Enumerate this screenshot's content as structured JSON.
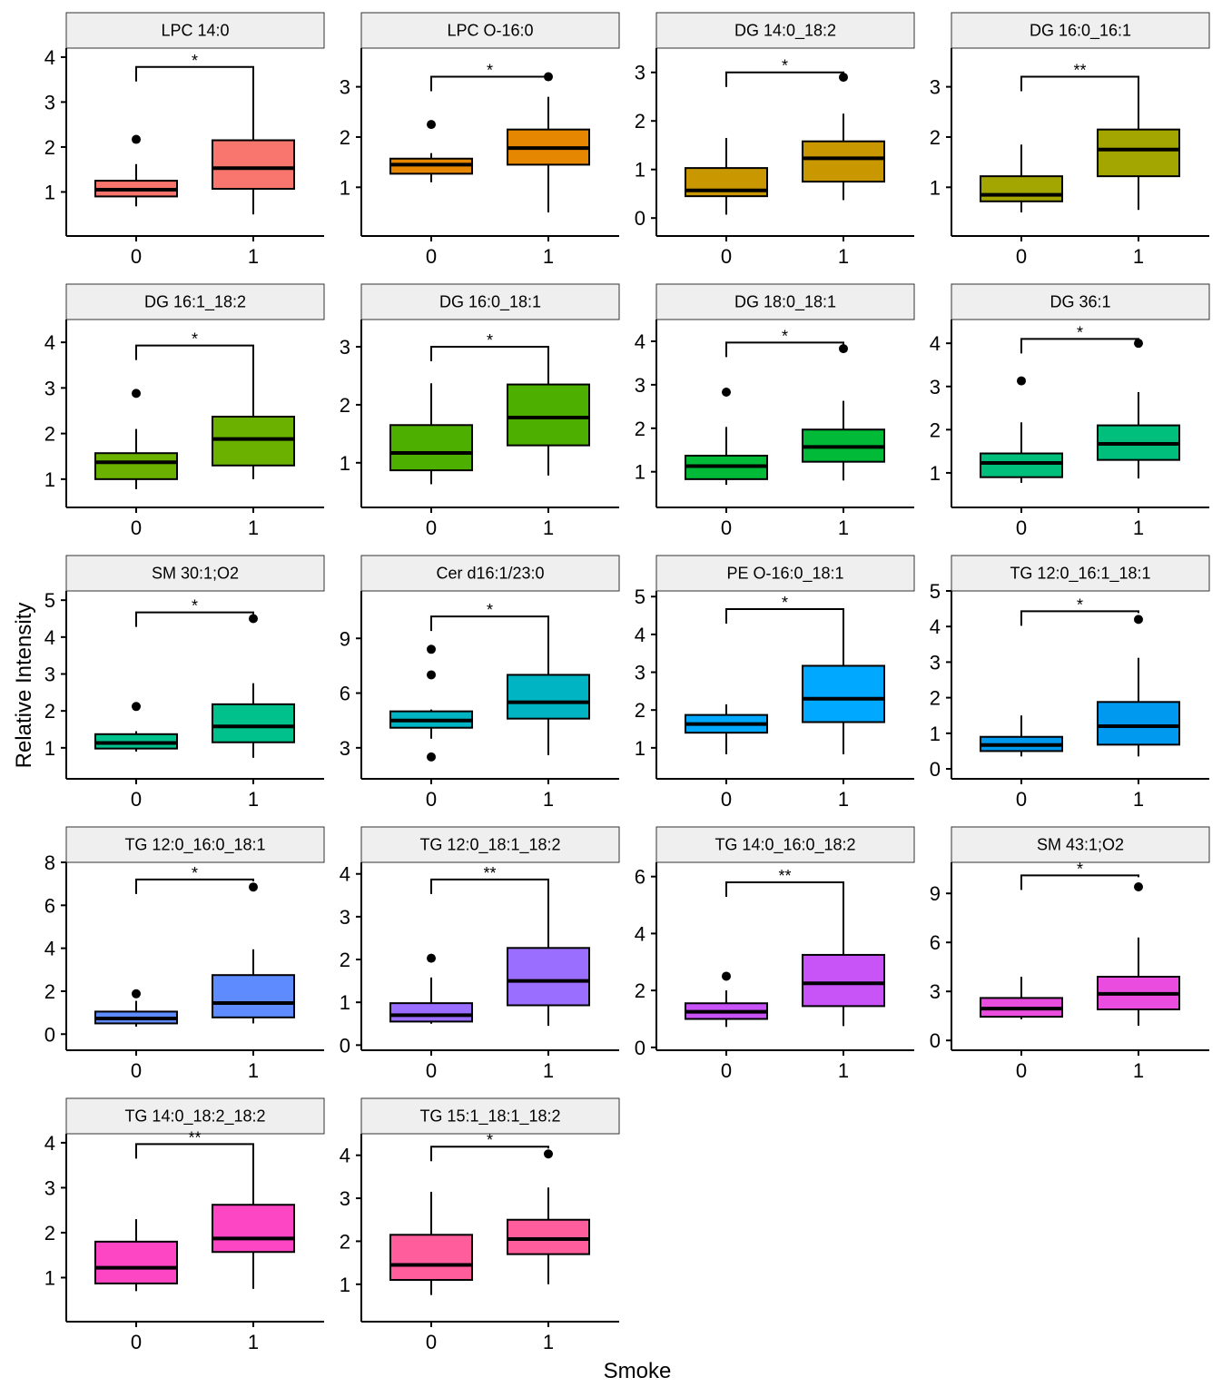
{
  "figure": {
    "ylabel": "Relative Intensity",
    "xlabel": "Smoke"
  },
  "colors": {
    "strip_fill": "#efefef",
    "axis": "#000000",
    "whisker": "#000000",
    "outlier": "#000000"
  },
  "chart_data": [
    {
      "type": "box",
      "title": "LPC 14:0",
      "color": "#f8766d",
      "categories": [
        "0",
        "1"
      ],
      "yticks": [
        1,
        2,
        3,
        4
      ],
      "ylim": [
        0.02,
        4.2
      ],
      "significance": "*",
      "bracket_y": 3.78,
      "groups": [
        {
          "min": 0.68,
          "q1": 0.9,
          "median": 1.05,
          "q3": 1.25,
          "max": 1.62,
          "outliers": [
            2.17
          ]
        },
        {
          "min": 0.5,
          "q1": 1.07,
          "median": 1.53,
          "q3": 2.15,
          "max": 3.78,
          "outliers": []
        }
      ]
    },
    {
      "type": "box",
      "title": "LPC O-16:0",
      "color": "#e58700",
      "categories": [
        "0",
        "1"
      ],
      "yticks": [
        1,
        2,
        3
      ],
      "ylim": [
        0.03,
        3.77
      ],
      "significance": "*",
      "bracket_y": 3.2,
      "groups": [
        {
          "min": 1.1,
          "q1": 1.27,
          "median": 1.45,
          "q3": 1.57,
          "max": 1.68,
          "outliers": [
            2.25
          ]
        },
        {
          "min": 0.5,
          "q1": 1.45,
          "median": 1.78,
          "q3": 2.15,
          "max": 2.8,
          "outliers": [
            3.2
          ]
        }
      ]
    },
    {
      "type": "box",
      "title": "DG 14:0_18:2",
      "color": "#c99800",
      "categories": [
        "0",
        "1"
      ],
      "yticks": [
        0,
        1,
        2,
        3
      ],
      "ylim": [
        -0.37,
        3.5
      ],
      "significance": "*",
      "bracket_y": 3.0,
      "groups": [
        {
          "min": 0.07,
          "q1": 0.45,
          "median": 0.57,
          "q3": 1.03,
          "max": 1.65,
          "outliers": []
        },
        {
          "min": 0.37,
          "q1": 0.75,
          "median": 1.23,
          "q3": 1.58,
          "max": 2.15,
          "outliers": [
            2.9
          ]
        }
      ]
    },
    {
      "type": "box",
      "title": "DG 16:0_16:1",
      "color": "#a3a500",
      "categories": [
        "0",
        "1"
      ],
      "yticks": [
        1,
        2,
        3
      ],
      "ylim": [
        0.03,
        3.77
      ],
      "significance": "**",
      "bracket_y": 3.2,
      "groups": [
        {
          "min": 0.5,
          "q1": 0.72,
          "median": 0.85,
          "q3": 1.22,
          "max": 1.85,
          "outliers": []
        },
        {
          "min": 0.55,
          "q1": 1.22,
          "median": 1.75,
          "q3": 2.15,
          "max": 3.2,
          "outliers": []
        }
      ]
    },
    {
      "type": "box",
      "title": "DG 16:1_18:2",
      "color": "#6bb100",
      "categories": [
        "0",
        "1"
      ],
      "yticks": [
        1,
        2,
        3,
        4
      ],
      "ylim": [
        0.38,
        4.5
      ],
      "significance": "*",
      "bracket_y": 3.93,
      "groups": [
        {
          "min": 0.78,
          "q1": 1.0,
          "median": 1.37,
          "q3": 1.57,
          "max": 2.1,
          "outliers": [
            2.88
          ]
        },
        {
          "min": 1.0,
          "q1": 1.3,
          "median": 1.88,
          "q3": 2.37,
          "max": 3.93,
          "outliers": []
        }
      ]
    },
    {
      "type": "box",
      "title": "DG 16:0_18:1",
      "color": "#4daf00",
      "categories": [
        "0",
        "1"
      ],
      "yticks": [
        1,
        2,
        3
      ],
      "ylim": [
        0.23,
        3.47
      ],
      "significance": "*",
      "bracket_y": 3.0,
      "groups": [
        {
          "min": 0.63,
          "q1": 0.87,
          "median": 1.17,
          "q3": 1.65,
          "max": 2.37,
          "outliers": []
        },
        {
          "min": 0.78,
          "q1": 1.3,
          "median": 1.78,
          "q3": 2.35,
          "max": 3.0,
          "outliers": []
        }
      ]
    },
    {
      "type": "box",
      "title": "DG 18:0_18:1",
      "color": "#00ba38",
      "categories": [
        "0",
        "1"
      ],
      "yticks": [
        1,
        2,
        3,
        4
      ],
      "ylim": [
        0.18,
        4.5
      ],
      "significance": "*",
      "bracket_y": 3.97,
      "groups": [
        {
          "min": 0.7,
          "q1": 0.83,
          "median": 1.13,
          "q3": 1.37,
          "max": 2.03,
          "outliers": [
            2.83
          ]
        },
        {
          "min": 0.8,
          "q1": 1.23,
          "median": 1.57,
          "q3": 1.97,
          "max": 2.63,
          "outliers": [
            3.83
          ]
        }
      ]
    },
    {
      "type": "box",
      "title": "DG 36:1",
      "color": "#00bf7d",
      "categories": [
        "0",
        "1"
      ],
      "yticks": [
        1,
        2,
        3,
        4
      ],
      "ylim": [
        0.2,
        4.55
      ],
      "significance": "*",
      "bracket_y": 4.1,
      "groups": [
        {
          "min": 0.77,
          "q1": 0.9,
          "median": 1.23,
          "q3": 1.45,
          "max": 2.17,
          "outliers": [
            3.13
          ]
        },
        {
          "min": 0.87,
          "q1": 1.3,
          "median": 1.67,
          "q3": 2.1,
          "max": 2.87,
          "outliers": [
            4.0
          ]
        }
      ]
    },
    {
      "type": "box",
      "title": "SM 30:1;O2",
      "color": "#00c08b",
      "categories": [
        "0",
        "1"
      ],
      "yticks": [
        1,
        2,
        3,
        4,
        5
      ],
      "ylim": [
        0.16,
        5.25
      ],
      "significance": "*",
      "bracket_y": 4.67,
      "groups": [
        {
          "min": 0.9,
          "q1": 0.98,
          "median": 1.13,
          "q3": 1.37,
          "max": 1.45,
          "outliers": [
            2.12
          ]
        },
        {
          "min": 0.73,
          "q1": 1.15,
          "median": 1.58,
          "q3": 2.18,
          "max": 2.75,
          "outliers": [
            4.5
          ]
        }
      ]
    },
    {
      "type": "box",
      "title": "Cer d16:1/23:0",
      "color": "#00b4c4",
      "categories": [
        "0",
        "1"
      ],
      "yticks": [
        3,
        6,
        9
      ],
      "ylim": [
        1.3,
        11.6
      ],
      "significance": "*",
      "bracket_y": 10.2,
      "groups": [
        {
          "min": 3.5,
          "q1": 4.1,
          "median": 4.5,
          "q3": 5.0,
          "max": 5.1,
          "outliers": [
            2.5,
            7.0,
            8.4
          ]
        },
        {
          "min": 2.6,
          "q1": 4.6,
          "median": 5.5,
          "q3": 7.0,
          "max": 10.2,
          "outliers": []
        }
      ]
    },
    {
      "type": "box",
      "title": "PE O-16:0_18:1",
      "color": "#00a9ff",
      "categories": [
        "0",
        "1"
      ],
      "yticks": [
        1,
        2,
        3,
        4,
        5
      ],
      "ylim": [
        0.18,
        5.15
      ],
      "significance": "*",
      "bracket_y": 4.67,
      "groups": [
        {
          "min": 0.83,
          "q1": 1.4,
          "median": 1.63,
          "q3": 1.87,
          "max": 2.15,
          "outliers": []
        },
        {
          "min": 0.83,
          "q1": 1.68,
          "median": 2.3,
          "q3": 3.17,
          "max": 4.67,
          "outliers": []
        }
      ]
    },
    {
      "type": "box",
      "title": "TG 12:0_16:1_18:1",
      "color": "#0099f0",
      "categories": [
        "0",
        "1"
      ],
      "yticks": [
        0,
        1,
        2,
        3,
        4,
        5
      ],
      "ylim": [
        -0.28,
        5.0
      ],
      "significance": "*",
      "bracket_y": 4.43,
      "groups": [
        {
          "min": 0.35,
          "q1": 0.5,
          "median": 0.67,
          "q3": 0.9,
          "max": 1.5,
          "outliers": []
        },
        {
          "min": 0.35,
          "q1": 0.68,
          "median": 1.2,
          "q3": 1.88,
          "max": 3.12,
          "outliers": [
            4.2
          ]
        }
      ]
    },
    {
      "type": "box",
      "title": "TG 12:0_16:0_18:1",
      "color": "#5e8cff",
      "categories": [
        "0",
        "1"
      ],
      "yticks": [
        0,
        2,
        4,
        6,
        8
      ],
      "ylim": [
        -0.75,
        8.0
      ],
      "significance": "*",
      "bracket_y": 7.2,
      "groups": [
        {
          "min": 0.35,
          "q1": 0.5,
          "median": 0.73,
          "q3": 1.05,
          "max": 1.55,
          "outliers": [
            1.88
          ]
        },
        {
          "min": 0.5,
          "q1": 0.78,
          "median": 1.45,
          "q3": 2.75,
          "max": 3.95,
          "outliers": [
            6.85
          ]
        }
      ]
    },
    {
      "type": "box",
      "title": "TG 12:0_18:1_18:2",
      "color": "#9a6eff",
      "categories": [
        "0",
        "1"
      ],
      "yticks": [
        0,
        1,
        2,
        3,
        4
      ],
      "ylim": [
        -0.12,
        4.27
      ],
      "significance": "**",
      "bracket_y": 3.87,
      "groups": [
        {
          "min": 0.5,
          "q1": 0.55,
          "median": 0.7,
          "q3": 0.98,
          "max": 1.58,
          "outliers": [
            2.03
          ]
        },
        {
          "min": 0.45,
          "q1": 0.93,
          "median": 1.5,
          "q3": 2.27,
          "max": 3.87,
          "outliers": []
        }
      ]
    },
    {
      "type": "box",
      "title": "TG 14:0_16:0_18:2",
      "color": "#c853f7",
      "categories": [
        "0",
        "1"
      ],
      "yticks": [
        0,
        2,
        4,
        6
      ],
      "ylim": [
        -0.1,
        6.5
      ],
      "significance": "**",
      "bracket_y": 5.8,
      "groups": [
        {
          "min": 0.72,
          "q1": 1.0,
          "median": 1.25,
          "q3": 1.55,
          "max": 2.0,
          "outliers": [
            2.5
          ]
        },
        {
          "min": 0.75,
          "q1": 1.45,
          "median": 2.25,
          "q3": 3.25,
          "max": 5.8,
          "outliers": []
        }
      ]
    },
    {
      "type": "box",
      "title": "SM 43:1;O2",
      "color": "#ea4ce0",
      "categories": [
        "0",
        "1"
      ],
      "yticks": [
        0,
        3,
        6,
        9
      ],
      "ylim": [
        -0.6,
        10.9
      ],
      "significance": "*",
      "bracket_y": 10.1,
      "groups": [
        {
          "min": 1.3,
          "q1": 1.45,
          "median": 1.95,
          "q3": 2.6,
          "max": 3.9,
          "outliers": []
        },
        {
          "min": 0.9,
          "q1": 1.9,
          "median": 2.85,
          "q3": 3.9,
          "max": 6.3,
          "outliers": [
            9.4
          ]
        }
      ]
    },
    {
      "type": "box",
      "title": "TG 14:0_18:2_18:2",
      "color": "#fc46c4",
      "categories": [
        "0",
        "1"
      ],
      "yticks": [
        1,
        2,
        3,
        4
      ],
      "ylim": [
        0.02,
        4.2
      ],
      "significance": "**",
      "bracket_y": 3.97,
      "groups": [
        {
          "min": 0.7,
          "q1": 0.87,
          "median": 1.22,
          "q3": 1.8,
          "max": 2.3,
          "outliers": []
        },
        {
          "min": 0.75,
          "q1": 1.57,
          "median": 1.87,
          "q3": 2.62,
          "max": 3.97,
          "outliers": []
        }
      ]
    },
    {
      "type": "box",
      "title": "TG 15:1_18:1_18:2",
      "color": "#ff5d9c",
      "categories": [
        "0",
        "1"
      ],
      "yticks": [
        1,
        2,
        3,
        4
      ],
      "ylim": [
        0.13,
        4.5
      ],
      "significance": "*",
      "bracket_y": 4.2,
      "groups": [
        {
          "min": 0.75,
          "q1": 1.1,
          "median": 1.45,
          "q3": 2.15,
          "max": 3.15,
          "outliers": []
        },
        {
          "min": 1.0,
          "q1": 1.7,
          "median": 2.05,
          "q3": 2.5,
          "max": 3.25,
          "outliers": [
            4.03
          ]
        }
      ]
    }
  ]
}
